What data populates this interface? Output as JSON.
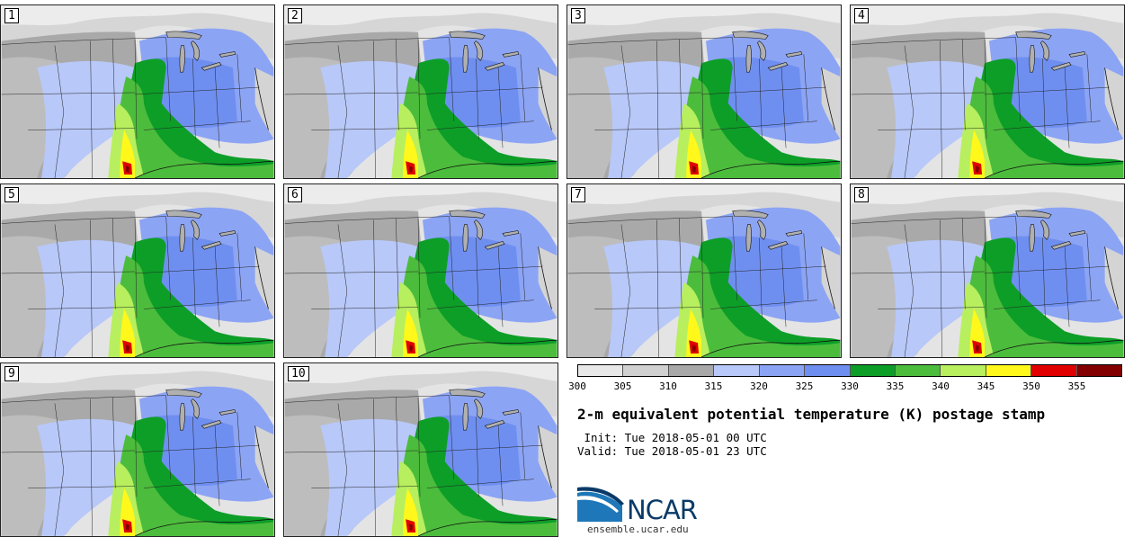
{
  "map": {
    "title": "2-m equivalent potential temperature (K) postage stamp",
    "init": " Init: Tue 2018-05-01 00 UTC",
    "valid": "Valid: Tue 2018-05-01 23 UTC",
    "units": "K",
    "members": [
      "1",
      "2",
      "3",
      "4",
      "5",
      "6",
      "7",
      "8",
      "9",
      "10"
    ]
  },
  "legend": {
    "ticks": [
      "300",
      "305",
      "310",
      "315",
      "320",
      "325",
      "330",
      "335",
      "340",
      "345",
      "350",
      "355"
    ],
    "colors": [
      "#e8e8e8",
      "#d0d0d0",
      "#a8a8a8",
      "#b8c8f8",
      "#8ca4f4",
      "#6f8ff0",
      "#0d9e28",
      "#4cbc3c",
      "#b7ef5e",
      "#fff81a",
      "#e00000",
      "#820000"
    ]
  },
  "branding": {
    "logo_text": "NCAR",
    "site": "ensemble.ucar.edu"
  }
}
